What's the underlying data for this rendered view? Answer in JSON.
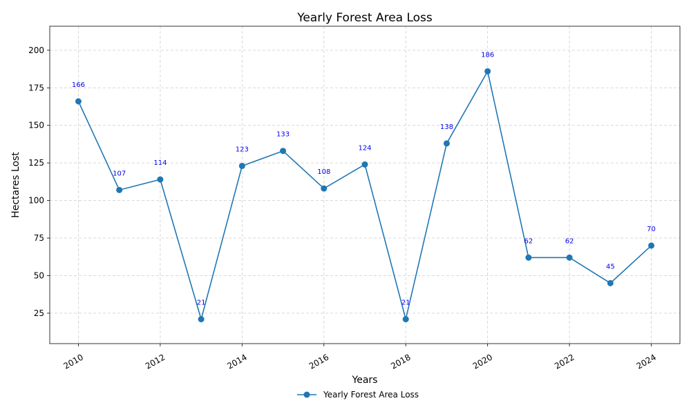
{
  "chart_data": {
    "type": "line",
    "title": "Yearly Forest Area Loss",
    "xlabel": "Years",
    "ylabel": "Hectares Lost",
    "x": [
      2010,
      2011,
      2012,
      2013,
      2014,
      2015,
      2016,
      2017,
      2018,
      2019,
      2020,
      2021,
      2022,
      2023,
      2024
    ],
    "series": [
      {
        "name": "Yearly Forest Area Loss",
        "values": [
          166,
          107,
          114,
          21,
          123,
          133,
          108,
          124,
          21,
          138,
          186,
          62,
          62,
          45,
          70
        ],
        "color": "#1f77b4"
      }
    ],
    "data_labels": [
      "166",
      "107",
      "114",
      "21",
      "123",
      "133",
      "108",
      "124",
      "21",
      "138",
      "186",
      "62",
      "62",
      "45",
      "70"
    ],
    "data_label_color": "#0000ee",
    "xticks": [
      "2010",
      "2012",
      "2014",
      "2016",
      "2018",
      "2020",
      "2022",
      "2024"
    ],
    "yticks": [
      "25",
      "50",
      "75",
      "100",
      "125",
      "150",
      "175",
      "200"
    ],
    "xlim": [
      2009.3,
      2024.7
    ],
    "ylim": [
      4.75,
      216
    ],
    "xtick_rotation": 30,
    "grid": true,
    "legend_position": "bottom-center"
  }
}
